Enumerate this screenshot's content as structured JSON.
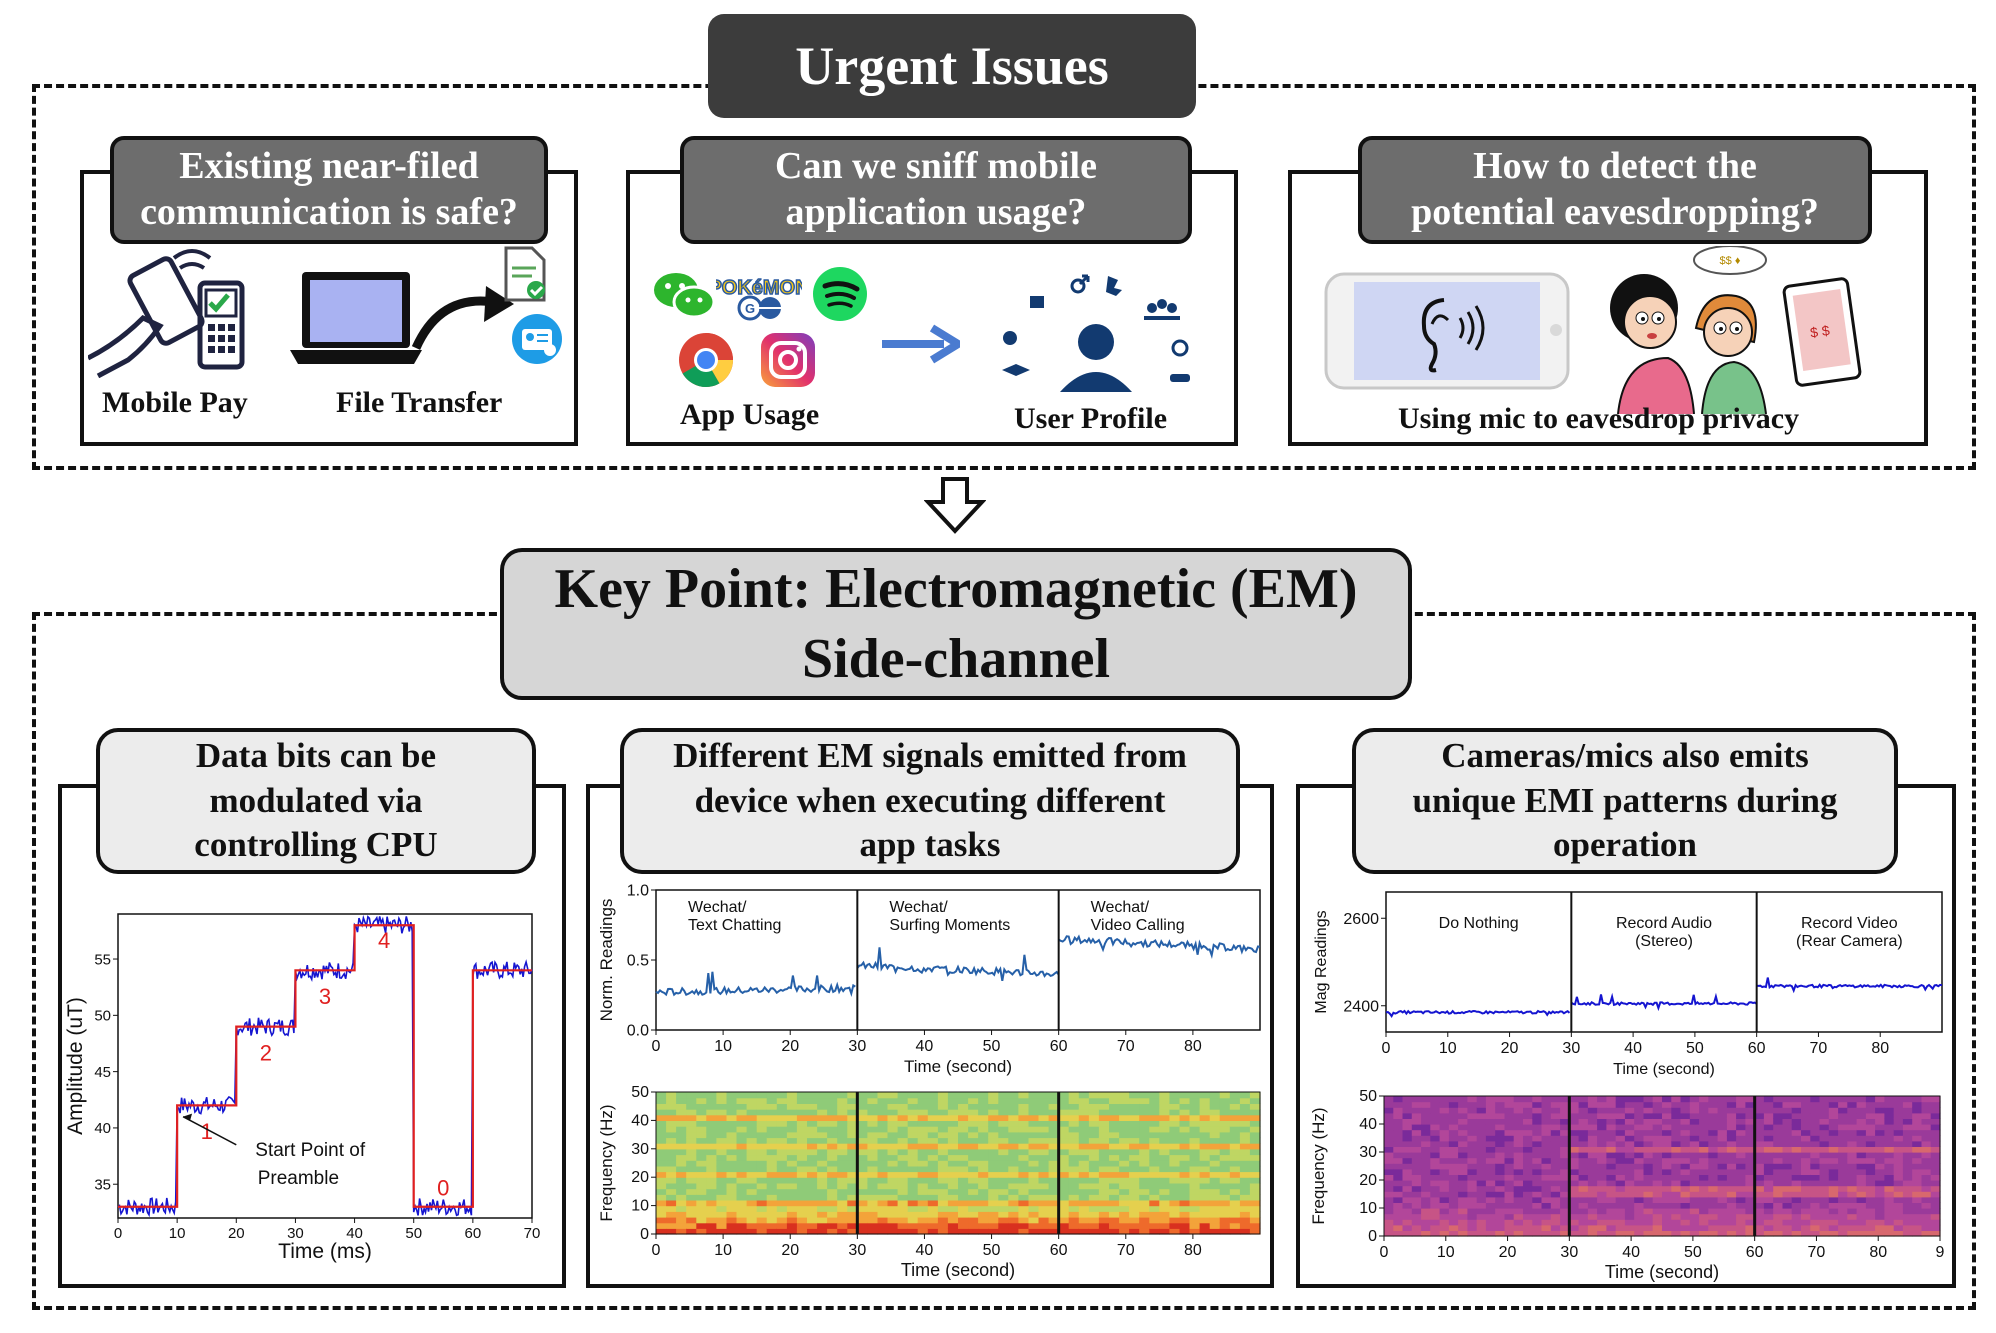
{
  "top": {
    "title": "Urgent Issues",
    "panels": [
      {
        "title_line1": "Existing near-filed",
        "title_line2": "communication is safe?",
        "captions": [
          "Mobile Pay",
          "File Transfer"
        ]
      },
      {
        "title_line1": "Can we sniff mobile",
        "title_line2": "application usage?",
        "captions": [
          "App Usage",
          "User Profile"
        ]
      },
      {
        "title_line1": "How to detect the",
        "title_line2": "potential eavesdropping?",
        "captions": [
          "Using mic to eavesdrop privacy"
        ]
      }
    ]
  },
  "key": {
    "line1": "Key Point: Electromagnetic (EM)",
    "line2": "Side-channel"
  },
  "bottom": {
    "panels": [
      {
        "title_lines": [
          "Data bits can be",
          "modulated via",
          "controlling CPU"
        ]
      },
      {
        "title_lines": [
          "Different EM signals emitted from",
          "device when executing different",
          "app tasks"
        ]
      },
      {
        "title_lines": [
          "Cameras/mics also emits",
          "unique EMI patterns during",
          "operation"
        ]
      }
    ]
  },
  "colors": {
    "dark_title": "#3c3c3c",
    "mid_title": "#6d6d6d",
    "light_title": "#ececec",
    "signal_blue": "#1515d0",
    "step_red": "#e02020",
    "trace_blue": "#2660a8"
  },
  "icons": [
    "nfc-payment-icon",
    "laptop-icon",
    "transfer-arrow-icon",
    "document-check-icon",
    "id-card-icon",
    "wechat-icon",
    "pokemon-go-icon",
    "spotify-icon",
    "chrome-icon",
    "instagram-icon",
    "right-arrow-icon",
    "user-profile-icon",
    "phone-ear-icon",
    "people-eavesdropping-icon",
    "down-arrow-icon"
  ],
  "chart_data": [
    {
      "type": "line",
      "xlabel": "Time (ms)",
      "ylabel": "Amplitude (uT)",
      "xlim": [
        0,
        70
      ],
      "ylim": [
        32,
        59
      ],
      "xticks": [
        "0",
        "10",
        "20",
        "30",
        "40",
        "50",
        "60",
        "70"
      ],
      "yticks": [
        "35",
        "40",
        "45",
        "50",
        "55"
      ],
      "series": [
        {
          "x": [
            0,
            10,
            10,
            20,
            20,
            30,
            30,
            40,
            40,
            50,
            50,
            60,
            60,
            70
          ],
          "values": [
            33,
            33,
            42,
            42,
            49,
            49,
            54,
            54,
            58,
            58,
            33,
            33,
            54,
            54
          ]
        }
      ],
      "step_labels": [
        "1",
        "2",
        "3",
        "4",
        "0"
      ],
      "annotations": [
        "Start Point of",
        "Preamble"
      ]
    },
    {
      "type": "line",
      "xlabel": "Time (second)",
      "ylabel": "Norm. Readings",
      "xlim": [
        0,
        90
      ],
      "ylim": [
        0.0,
        1.0
      ],
      "xticks": [
        "0",
        "10",
        "20",
        "30",
        "40",
        "50",
        "60",
        "70",
        "80"
      ],
      "yticks": [
        "0.0",
        "0.5",
        "1.0"
      ],
      "segment_labels": [
        [
          "Wechat/",
          "Text Chatting"
        ],
        [
          "Wechat/",
          "Surfing Moments"
        ],
        [
          "Wechat/",
          "Video Calling"
        ]
      ],
      "series": [
        {
          "x": [
            0,
            30,
            30,
            60,
            60,
            90
          ],
          "values": [
            0.27,
            0.3,
            0.46,
            0.4,
            0.65,
            0.58
          ]
        }
      ]
    },
    {
      "type": "heatmap",
      "xlabel": "Time (second)",
      "ylabel": "Frequency (Hz)",
      "xlim": [
        0,
        90
      ],
      "ylim": [
        0,
        50
      ],
      "xticks": [
        "0",
        "10",
        "20",
        "30",
        "40",
        "50",
        "60",
        "70",
        "80"
      ],
      "yticks": [
        "0",
        "10",
        "20",
        "30",
        "40",
        "50"
      ]
    },
    {
      "type": "line",
      "xlabel": "Time (second)",
      "ylabel": "Mag Readings",
      "xlim": [
        0,
        90
      ],
      "ylim": [
        2340,
        2660
      ],
      "xticks": [
        "0",
        "10",
        "20",
        "30",
        "40",
        "50",
        "60",
        "70",
        "80"
      ],
      "yticks": [
        "2400",
        "2600"
      ],
      "segment_labels": [
        [
          "Do Nothing"
        ],
        [
          "Record Audio",
          "(Stereo)"
        ],
        [
          "Record Video",
          "(Rear Camera)"
        ]
      ],
      "series": [
        {
          "x": [
            0,
            30,
            30,
            60,
            60,
            90
          ],
          "values": [
            2385,
            2385,
            2405,
            2405,
            2445,
            2445
          ]
        }
      ]
    },
    {
      "type": "heatmap",
      "xlabel": "Time (second)",
      "ylabel": "Frequency (Hz)",
      "xlim": [
        0,
        90
      ],
      "ylim": [
        0,
        50
      ],
      "xticks": [
        "0",
        "10",
        "20",
        "30",
        "40",
        "50",
        "60",
        "70",
        "80",
        "9"
      ],
      "yticks": [
        "0",
        "10",
        "20",
        "30",
        "40",
        "50"
      ]
    }
  ]
}
